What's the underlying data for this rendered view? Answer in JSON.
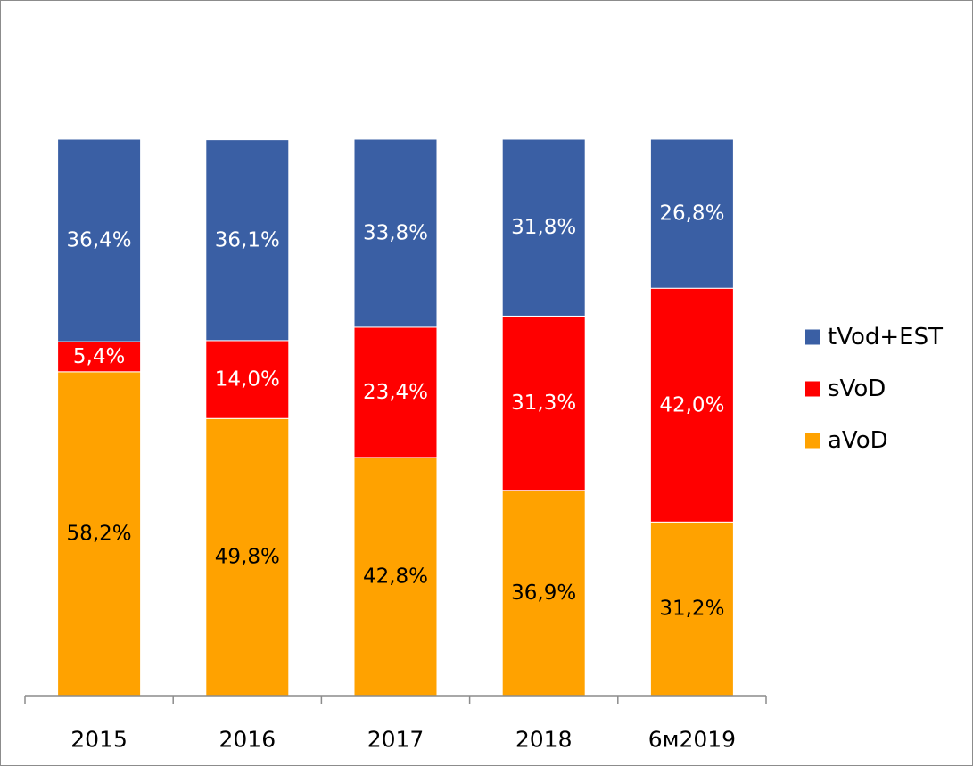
{
  "chart_data": {
    "type": "bar",
    "stacked": true,
    "percent_stacked": true,
    "title": "",
    "xlabel": "",
    "ylabel": "",
    "ylim": [
      0,
      100
    ],
    "grid": false,
    "legend_position": "right",
    "categories": [
      "2015",
      "2016",
      "2017",
      "2018",
      "6м2019"
    ],
    "series": [
      {
        "name": "aVoD",
        "color": "#FFA200",
        "label_color": "#000000",
        "values": [
          58.2,
          49.8,
          42.8,
          36.9,
          31.2
        ],
        "labels": [
          "58,2%",
          "49,8%",
          "42,8%",
          "36,9%",
          "31,2%"
        ]
      },
      {
        "name": "sVoD",
        "color": "#FF0000",
        "label_color": "#FFFFFF",
        "values": [
          5.4,
          14.0,
          23.4,
          31.3,
          42.0
        ],
        "labels": [
          "5,4%",
          "14,0%",
          "23,4%",
          "31,3%",
          "42,0%"
        ]
      },
      {
        "name": "tVod+EST",
        "color": "#3A5FA4",
        "label_color": "#FFFFFF",
        "values": [
          36.4,
          36.1,
          33.8,
          31.8,
          26.8
        ],
        "labels": [
          "36,4%",
          "36,1%",
          "33,8%",
          "31,8%",
          "26,8%"
        ]
      }
    ],
    "legend_order": [
      "tVod+EST",
      "sVoD",
      "aVoD"
    ]
  }
}
